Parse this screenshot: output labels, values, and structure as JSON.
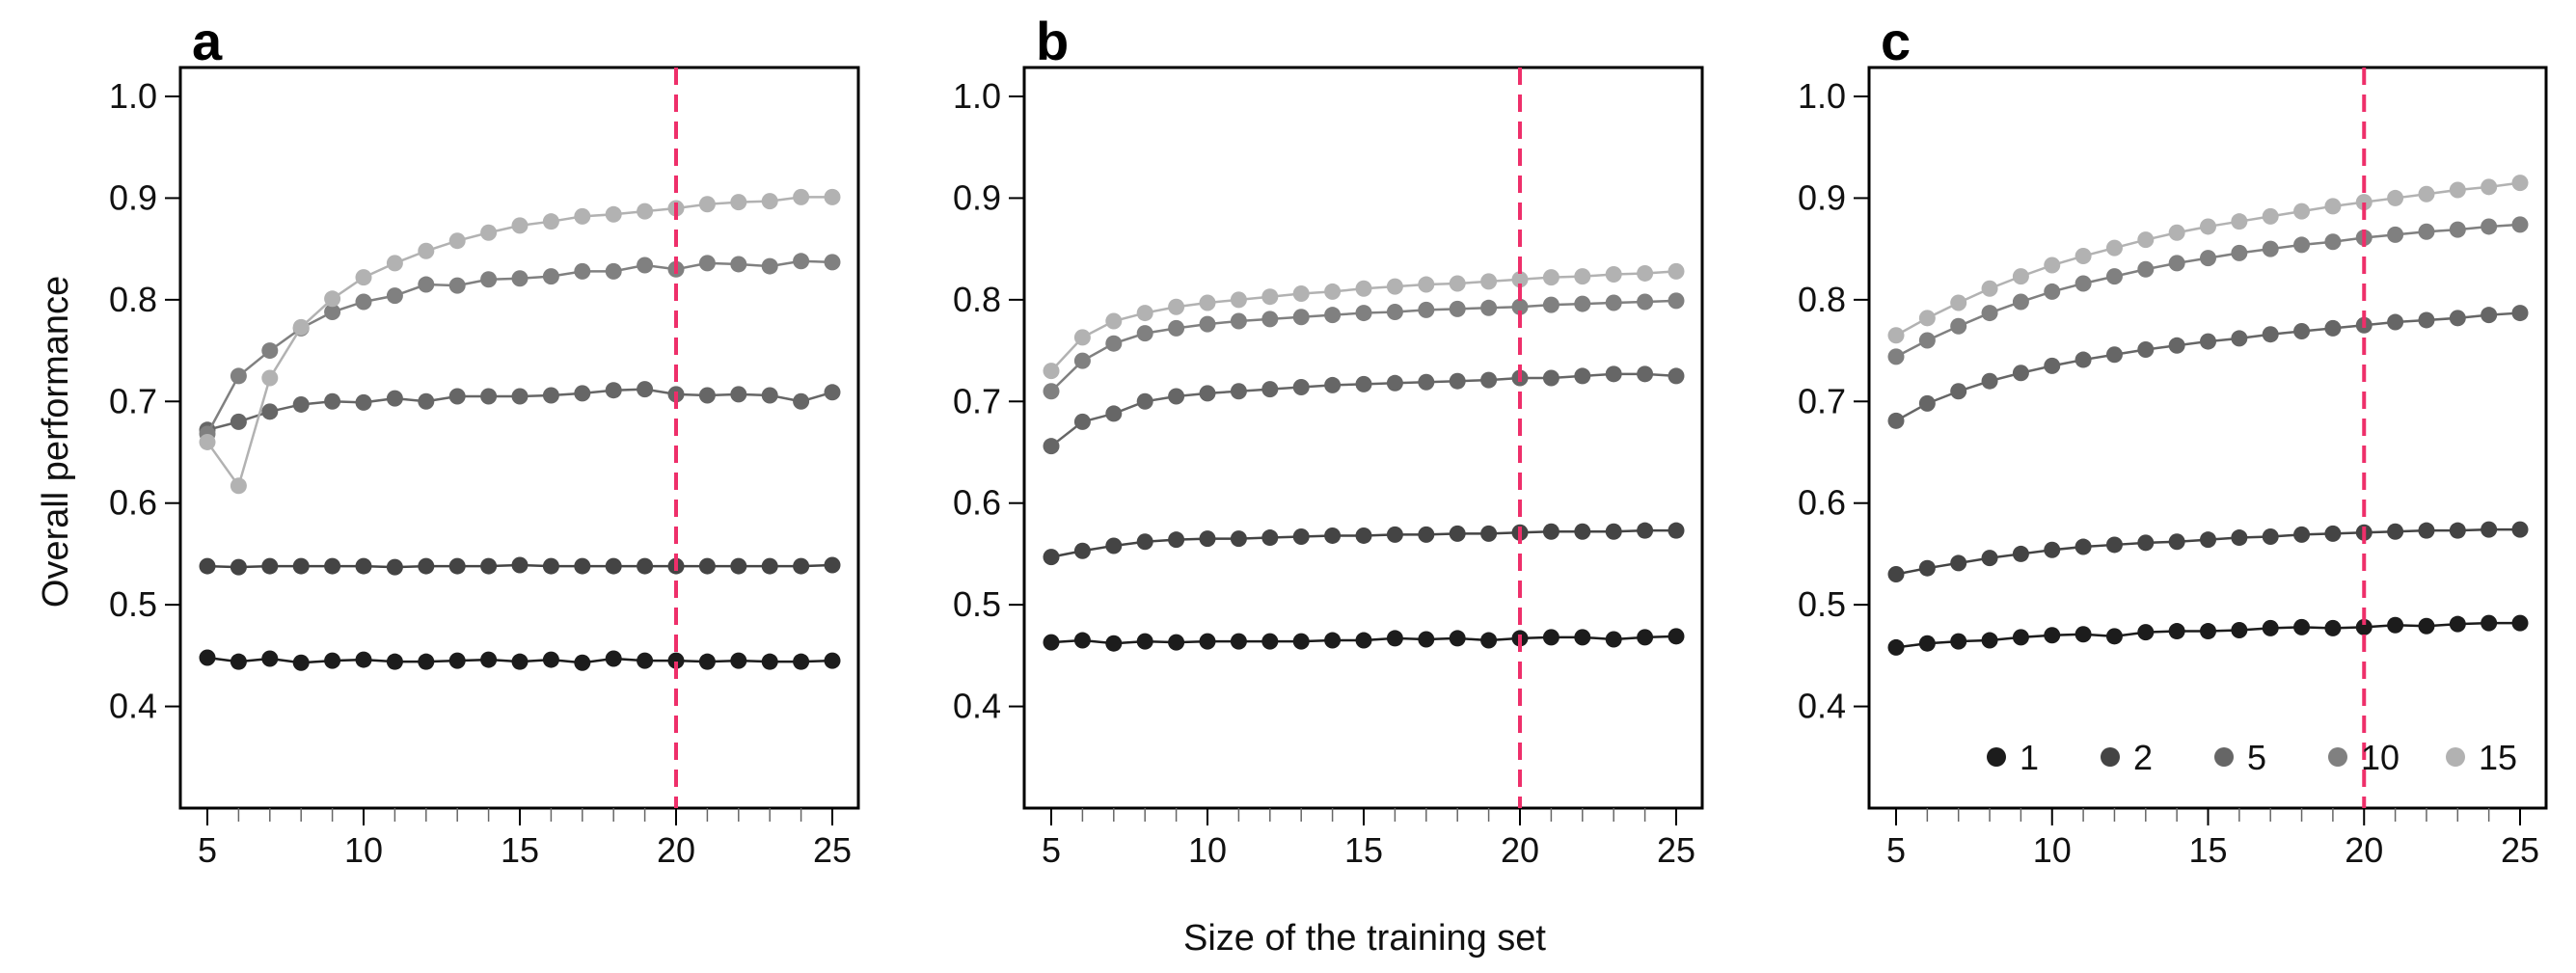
{
  "chart_data": [
    {
      "panel": "a",
      "type": "line",
      "xlim": [
        5,
        25
      ],
      "ylim": [
        0.3,
        1.0
      ],
      "x": [
        5,
        6,
        7,
        8,
        9,
        10,
        11,
        12,
        13,
        14,
        15,
        16,
        17,
        18,
        19,
        20,
        21,
        22,
        23,
        24,
        25
      ],
      "x_ticks": [
        "5",
        "10",
        "15",
        "20",
        "25"
      ],
      "y_ticks": [
        "0.4",
        "0.5",
        "0.6",
        "0.7",
        "0.8",
        "0.9",
        "1.0"
      ],
      "vline_x": 20,
      "series": [
        {
          "name": "1",
          "color": "#1c1c1c",
          "values": [
            0.448,
            0.444,
            0.447,
            0.443,
            0.445,
            0.446,
            0.444,
            0.444,
            0.445,
            0.446,
            0.444,
            0.446,
            0.443,
            0.447,
            0.445,
            0.445,
            0.444,
            0.445,
            0.444,
            0.444,
            0.445
          ]
        },
        {
          "name": "2",
          "color": "#444444",
          "values": [
            0.538,
            0.537,
            0.538,
            0.538,
            0.538,
            0.538,
            0.537,
            0.538,
            0.538,
            0.538,
            0.539,
            0.538,
            0.538,
            0.538,
            0.538,
            0.538,
            0.538,
            0.538,
            0.538,
            0.538,
            0.539
          ]
        },
        {
          "name": "5",
          "color": "#666666",
          "values": [
            0.672,
            0.68,
            0.69,
            0.697,
            0.7,
            0.699,
            0.703,
            0.7,
            0.705,
            0.705,
            0.705,
            0.706,
            0.708,
            0.711,
            0.712,
            0.707,
            0.706,
            0.707,
            0.706,
            0.7,
            0.709
          ]
        },
        {
          "name": "10",
          "color": "#808080",
          "values": [
            0.668,
            0.725,
            0.75,
            0.772,
            0.788,
            0.798,
            0.804,
            0.815,
            0.814,
            0.82,
            0.821,
            0.823,
            0.828,
            0.828,
            0.834,
            0.83,
            0.836,
            0.835,
            0.833,
            0.838,
            0.837
          ]
        },
        {
          "name": "15",
          "color": "#b2b2b2",
          "values": [
            0.66,
            0.617,
            0.723,
            0.773,
            0.801,
            0.822,
            0.836,
            0.848,
            0.858,
            0.866,
            0.873,
            0.877,
            0.882,
            0.884,
            0.887,
            0.89,
            0.894,
            0.896,
            0.897,
            0.901,
            0.901
          ]
        }
      ]
    },
    {
      "panel": "b",
      "type": "line",
      "xlim": [
        5,
        25
      ],
      "ylim": [
        0.3,
        1.0
      ],
      "x": [
        5,
        6,
        7,
        8,
        9,
        10,
        11,
        12,
        13,
        14,
        15,
        16,
        17,
        18,
        19,
        20,
        21,
        22,
        23,
        24,
        25
      ],
      "x_ticks": [
        "5",
        "10",
        "15",
        "20",
        "25"
      ],
      "y_ticks": [
        "0.4",
        "0.5",
        "0.6",
        "0.7",
        "0.8",
        "0.9",
        "1.0"
      ],
      "vline_x": 20,
      "series": [
        {
          "name": "1",
          "color": "#1c1c1c",
          "values": [
            0.463,
            0.465,
            0.462,
            0.464,
            0.463,
            0.464,
            0.464,
            0.464,
            0.464,
            0.465,
            0.465,
            0.467,
            0.466,
            0.467,
            0.465,
            0.467,
            0.468,
            0.468,
            0.466,
            0.468,
            0.469
          ]
        },
        {
          "name": "2",
          "color": "#444444",
          "values": [
            0.547,
            0.553,
            0.558,
            0.562,
            0.564,
            0.565,
            0.565,
            0.566,
            0.567,
            0.568,
            0.568,
            0.569,
            0.569,
            0.57,
            0.57,
            0.571,
            0.572,
            0.572,
            0.572,
            0.573,
            0.573
          ]
        },
        {
          "name": "5",
          "color": "#666666",
          "values": [
            0.656,
            0.68,
            0.688,
            0.7,
            0.705,
            0.708,
            0.71,
            0.712,
            0.714,
            0.716,
            0.717,
            0.718,
            0.719,
            0.72,
            0.721,
            0.723,
            0.723,
            0.725,
            0.727,
            0.727,
            0.725
          ]
        },
        {
          "name": "10",
          "color": "#808080",
          "values": [
            0.71,
            0.74,
            0.757,
            0.767,
            0.772,
            0.776,
            0.779,
            0.781,
            0.783,
            0.785,
            0.787,
            0.788,
            0.79,
            0.791,
            0.792,
            0.793,
            0.795,
            0.796,
            0.797,
            0.798,
            0.799
          ]
        },
        {
          "name": "15",
          "color": "#b2b2b2",
          "values": [
            0.73,
            0.763,
            0.779,
            0.787,
            0.793,
            0.797,
            0.8,
            0.803,
            0.806,
            0.808,
            0.811,
            0.813,
            0.815,
            0.816,
            0.818,
            0.82,
            0.822,
            0.823,
            0.825,
            0.826,
            0.828
          ]
        }
      ]
    },
    {
      "panel": "c",
      "type": "line",
      "xlim": [
        5,
        25
      ],
      "ylim": [
        0.3,
        1.0
      ],
      "x": [
        5,
        6,
        7,
        8,
        9,
        10,
        11,
        12,
        13,
        14,
        15,
        16,
        17,
        18,
        19,
        20,
        21,
        22,
        23,
        24,
        25
      ],
      "x_ticks": [
        "5",
        "10",
        "15",
        "20",
        "25"
      ],
      "y_ticks": [
        "0.4",
        "0.5",
        "0.6",
        "0.7",
        "0.8",
        "0.9",
        "1.0"
      ],
      "vline_x": 20,
      "series": [
        {
          "name": "1",
          "color": "#1c1c1c",
          "values": [
            0.458,
            0.462,
            0.464,
            0.465,
            0.468,
            0.47,
            0.471,
            0.469,
            0.473,
            0.474,
            0.474,
            0.475,
            0.477,
            0.478,
            0.477,
            0.478,
            0.48,
            0.479,
            0.481,
            0.482,
            0.482
          ]
        },
        {
          "name": "2",
          "color": "#444444",
          "values": [
            0.53,
            0.536,
            0.541,
            0.546,
            0.55,
            0.554,
            0.557,
            0.559,
            0.561,
            0.562,
            0.564,
            0.566,
            0.567,
            0.569,
            0.57,
            0.571,
            0.572,
            0.573,
            0.573,
            0.574,
            0.574
          ]
        },
        {
          "name": "5",
          "color": "#666666",
          "values": [
            0.681,
            0.698,
            0.71,
            0.72,
            0.728,
            0.735,
            0.741,
            0.746,
            0.751,
            0.755,
            0.759,
            0.762,
            0.766,
            0.769,
            0.772,
            0.775,
            0.778,
            0.78,
            0.782,
            0.785,
            0.787
          ]
        },
        {
          "name": "10",
          "color": "#808080",
          "values": [
            0.744,
            0.76,
            0.774,
            0.787,
            0.798,
            0.808,
            0.816,
            0.823,
            0.83,
            0.836,
            0.841,
            0.846,
            0.85,
            0.854,
            0.857,
            0.861,
            0.864,
            0.867,
            0.869,
            0.872,
            0.874
          ]
        },
        {
          "name": "15",
          "color": "#b2b2b2",
          "values": [
            0.765,
            0.782,
            0.797,
            0.811,
            0.823,
            0.834,
            0.843,
            0.851,
            0.859,
            0.866,
            0.872,
            0.877,
            0.882,
            0.887,
            0.892,
            0.896,
            0.9,
            0.904,
            0.908,
            0.911,
            0.915
          ]
        }
      ]
    }
  ],
  "figure": {
    "xlabel": "Size of the training set",
    "ylabel": "Overall performance",
    "legend": {
      "placement": "bottom-right of panel c",
      "entries": [
        {
          "label": "1",
          "color": "#1c1c1c"
        },
        {
          "label": "2",
          "color": "#444444"
        },
        {
          "label": "5",
          "color": "#666666"
        },
        {
          "label": "10",
          "color": "#808080"
        },
        {
          "label": "15",
          "color": "#b2b2b2"
        }
      ]
    },
    "vline_color": "#ee2f6a"
  }
}
